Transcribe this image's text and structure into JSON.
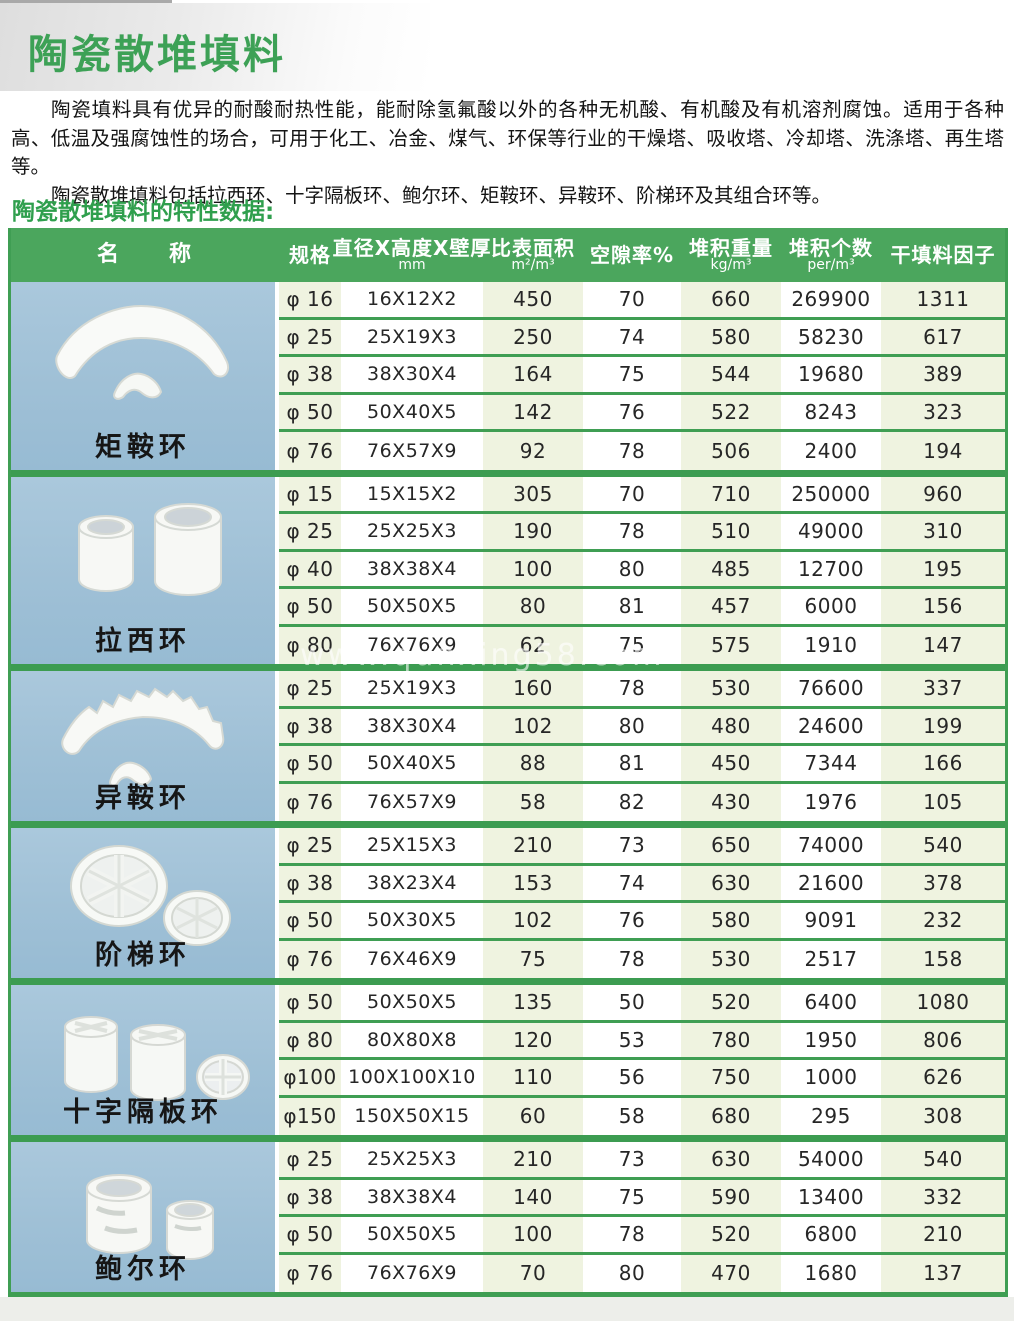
{
  "page": {
    "title": "陶瓷散堆填料",
    "intro_paragraph_1": "陶瓷填料具有优异的耐酸耐热性能，能耐除氢氟酸以外的各种无机酸、有机酸及有机溶剂腐蚀。适用于各种高、低温及强腐蚀性的场合，可用于化工、冶金、煤气、环保等行业的干燥塔、吸收塔、冷却塔、洗涤塔、再生塔等。",
    "intro_paragraph_2": "陶瓷散堆填料包括拉西环、十字隔板环、鲍尔环、矩鞍环、异鞍环、阶梯环及其组合环等。",
    "section_heading": "陶瓷散堆填料的特性数据:",
    "watermark": "www.qunxing58.com"
  },
  "colors": {
    "accent_green": "#3da156",
    "header_green": "#4ba65d",
    "line_green": "#3f9e53",
    "cell_cream": "#eff3e0",
    "photo_blue": "#9fc0d6"
  },
  "table": {
    "headers": [
      {
        "label": "名　　称",
        "sub": ""
      },
      {
        "label": "规格",
        "sub": ""
      },
      {
        "label": "直径X高度X壁厚",
        "sub": "mm"
      },
      {
        "label": "比表面积",
        "sub": "m²/m³"
      },
      {
        "label": "空隙率%",
        "sub": ""
      },
      {
        "label": "堆积重量",
        "sub": "kg/m³"
      },
      {
        "label": "堆积个数",
        "sub": "per/m³"
      },
      {
        "label": "干填料因子",
        "sub": ""
      }
    ],
    "groups": [
      {
        "name": "矩鞍环",
        "art": "saddle-rings",
        "rows": [
          [
            "φ 16",
            "16X12X2",
            "450",
            "70",
            "660",
            "269900",
            "1311"
          ],
          [
            "φ 25",
            "25X19X3",
            "250",
            "74",
            "580",
            "58230",
            "617"
          ],
          [
            "φ 38",
            "38X30X4",
            "164",
            "75",
            "544",
            "19680",
            "389"
          ],
          [
            "φ 50",
            "50X40X5",
            "142",
            "76",
            "522",
            "8243",
            "323"
          ],
          [
            "φ 76",
            "76X57X9",
            "92",
            "78",
            "506",
            "2400",
            "194"
          ]
        ]
      },
      {
        "name": "拉西环",
        "art": "raschig-rings",
        "rows": [
          [
            "φ 15",
            "15X15X2",
            "305",
            "70",
            "710",
            "250000",
            "960"
          ],
          [
            "φ 25",
            "25X25X3",
            "190",
            "78",
            "510",
            "49000",
            "310"
          ],
          [
            "φ 40",
            "38X38X4",
            "100",
            "80",
            "485",
            "12700",
            "195"
          ],
          [
            "φ 50",
            "50X50X5",
            "80",
            "81",
            "457",
            "6000",
            "156"
          ],
          [
            "φ 80",
            "76X76X9",
            "62",
            "75",
            "575",
            "1910",
            "147"
          ]
        ]
      },
      {
        "name": "异鞍环",
        "art": "intalox-saddles",
        "rows": [
          [
            "φ 25",
            "25X19X3",
            "160",
            "78",
            "530",
            "76600",
            "337"
          ],
          [
            "φ 38",
            "38X30X4",
            "102",
            "80",
            "480",
            "24600",
            "199"
          ],
          [
            "φ 50",
            "50X40X5",
            "88",
            "81",
            "450",
            "7344",
            "166"
          ],
          [
            "φ 76",
            "76X57X9",
            "58",
            "82",
            "430",
            "1976",
            "105"
          ]
        ]
      },
      {
        "name": "阶梯环",
        "art": "cascade-rings",
        "rows": [
          [
            "φ 25",
            "25X15X3",
            "210",
            "73",
            "650",
            "74000",
            "540"
          ],
          [
            "φ 38",
            "38X23X4",
            "153",
            "74",
            "630",
            "21600",
            "378"
          ],
          [
            "φ 50",
            "50X30X5",
            "102",
            "76",
            "580",
            "9091",
            "232"
          ],
          [
            "φ 76",
            "76X46X9",
            "75",
            "78",
            "530",
            "2517",
            "158"
          ]
        ]
      },
      {
        "name": "十字隔板环",
        "art": "cross-partition-rings",
        "rows": [
          [
            "φ 50",
            "50X50X5",
            "135",
            "50",
            "520",
            "6400",
            "1080"
          ],
          [
            "φ 80",
            "80X80X8",
            "120",
            "53",
            "780",
            "1950",
            "806"
          ],
          [
            "φ100",
            "100X100X10",
            "110",
            "56",
            "750",
            "1000",
            "626"
          ],
          [
            "φ150",
            "150X50X15",
            "60",
            "58",
            "680",
            "295",
            "308"
          ]
        ]
      },
      {
        "name": "鲍尔环",
        "art": "pall-rings",
        "rows": [
          [
            "φ 25",
            "25X25X3",
            "210",
            "73",
            "630",
            "54000",
            "540"
          ],
          [
            "φ 38",
            "38X38X4",
            "140",
            "75",
            "590",
            "13400",
            "332"
          ],
          [
            "φ 50",
            "50X50X5",
            "100",
            "78",
            "520",
            "6800",
            "210"
          ],
          [
            "φ 76",
            "76X76X9",
            "70",
            "80",
            "470",
            "1680",
            "137"
          ]
        ]
      }
    ]
  }
}
